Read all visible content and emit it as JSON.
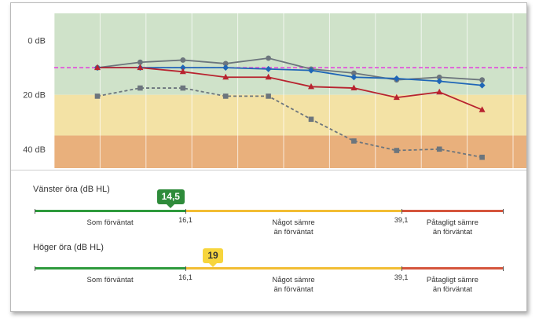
{
  "chart_data": {
    "type": "line",
    "ylabel": "dB",
    "y_ticks": [
      {
        "value": 0,
        "label": "0 dB"
      },
      {
        "value": 20,
        "label": "20 dB"
      },
      {
        "value": 40,
        "label": "40 dB"
      }
    ],
    "y_range": [
      -10,
      47
    ],
    "x_points": 10,
    "bands": [
      {
        "from": -10,
        "to": 20,
        "color": "#cfe2c9"
      },
      {
        "from": 20,
        "to": 35,
        "color": "#f3e2a5"
      },
      {
        "from": 35,
        "to": 47,
        "color": "#e9b07c"
      }
    ],
    "reference_line": {
      "value": 10,
      "color": "#e53be0"
    },
    "series": [
      {
        "name": "grey-solid-circle",
        "color": "#6c757d",
        "marker": "circle",
        "dash": false,
        "values": [
          10,
          8,
          7.2,
          8.5,
          6.5,
          10.5,
          12,
          14.5,
          13.5,
          14.5
        ]
      },
      {
        "name": "blue-diamond",
        "color": "#1f66b7",
        "marker": "diamond",
        "dash": false,
        "values": [
          10,
          10,
          10,
          10,
          10.5,
          11,
          13.5,
          14,
          15,
          16.5
        ]
      },
      {
        "name": "red-triangle",
        "color": "#b8232f",
        "marker": "triangle",
        "dash": false,
        "values": [
          10,
          10,
          11.5,
          13.5,
          13.5,
          17,
          17.5,
          21,
          19,
          25.5
        ]
      },
      {
        "name": "grey-dashed-square",
        "color": "#6c757d",
        "marker": "square",
        "dash": true,
        "values": [
          20.5,
          17.5,
          17.5,
          20.5,
          20.5,
          29,
          37,
          40.5,
          40,
          43
        ]
      }
    ]
  },
  "scales": {
    "range_min": 0,
    "range_max": 50,
    "threshold_1": 16.1,
    "threshold_2": 39.1,
    "threshold_1_label": "16,1",
    "threshold_2_label": "39,1",
    "colors": {
      "green": "#2e9a3c",
      "yellow": "#f2bd33",
      "red": "#d5553c"
    },
    "categories": {
      "normal": "Som förväntat",
      "slightly_worse_1": "Något sämre",
      "slightly_worse_2": "än förväntat",
      "much_worse_1": "Påtagligt sämre",
      "much_worse_2": "än förväntat"
    },
    "left_ear": {
      "title": "Vänster öra (dB HL)",
      "value": 14.5,
      "value_label": "14,5",
      "badge_bg": "#2e8b3a",
      "badge_fg": "#ffffff"
    },
    "right_ear": {
      "title": "Höger öra (dB HL)",
      "value": 19,
      "value_label": "19",
      "badge_bg": "#f7d53d",
      "badge_fg": "#333333"
    }
  }
}
